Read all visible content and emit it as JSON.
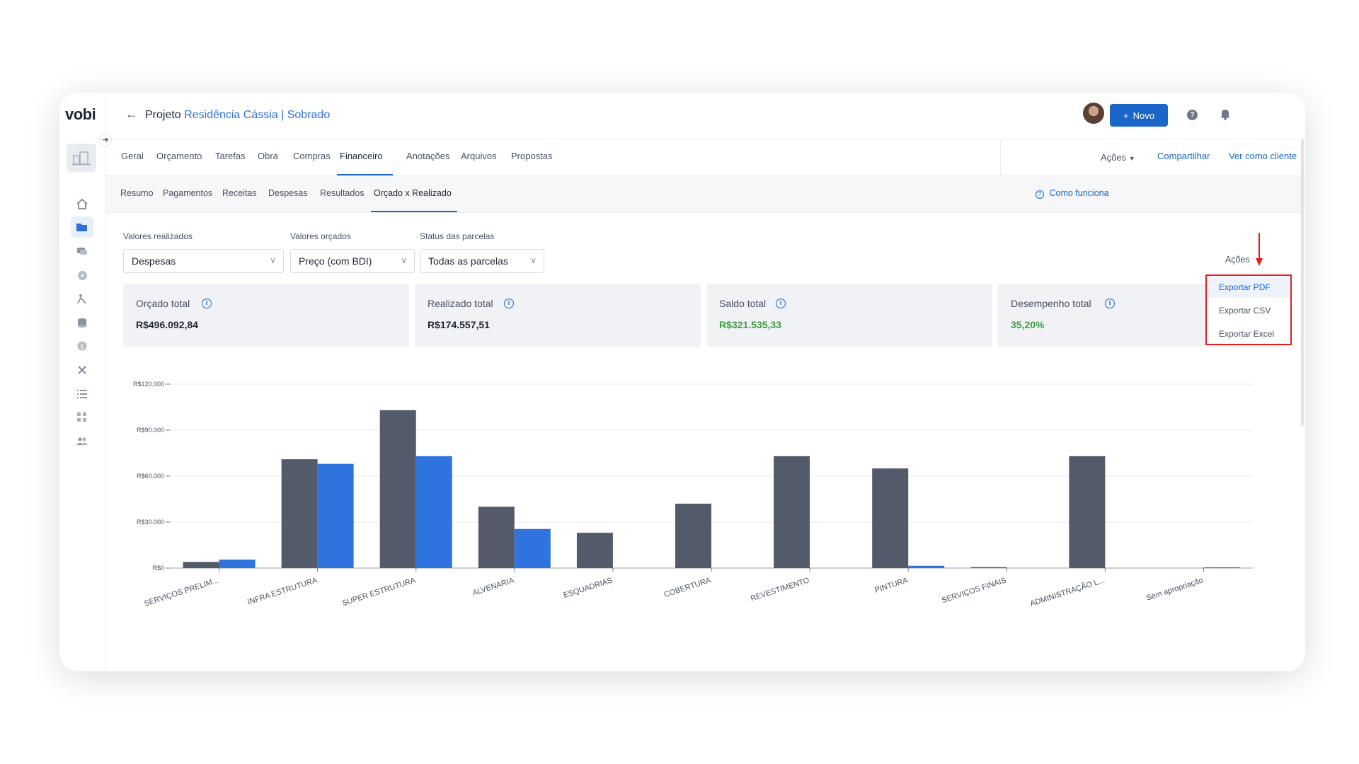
{
  "sidebar": {
    "logo": "vobi",
    "icons": [
      "collapse-arrow-icon",
      "home-icon",
      "folder-icon",
      "chat-icon",
      "compass-icon",
      "worker-icon",
      "coins-icon",
      "dollar-icon",
      "tools-icon",
      "list-icon",
      "apps-icon",
      "users-icon"
    ]
  },
  "header": {
    "back_icon": "arrow-left-icon",
    "title_prefix": "Projeto",
    "project_name": "Residência Cássia",
    "separator": "|",
    "project_sub": "Sobrado",
    "new_button": "Novo",
    "accent": "#1a66c9"
  },
  "tabs": {
    "items": [
      "Geral",
      "Orçamento",
      "Tarefas",
      "Obra",
      "Compras",
      "Financeiro",
      "Anotações",
      "Arquivos",
      "Propostas"
    ],
    "active": "Financeiro",
    "acoes": "Ações",
    "compartilhar": "Compartilhar",
    "ver_como_cliente": "Ver como cliente"
  },
  "subtabs": {
    "items": [
      "Resumo",
      "Pagamentos",
      "Receitas",
      "Despesas",
      "Resultados",
      "Orçado x Realizado"
    ],
    "active": "Orçado x Realizado",
    "help": "Como funciona"
  },
  "filters": {
    "realizados_label": "Valores realizados",
    "realizados_value": "Despesas",
    "orcados_label": "Valores orçados",
    "orcados_value": "Preço (com BDI)",
    "status_label": "Status das parcelas",
    "status_value": "Todas as parcelas",
    "acoes_label": "Ações"
  },
  "cards": [
    {
      "title": "Orçado total",
      "value": "R$496.092,84"
    },
    {
      "title": "Realizado total",
      "value": "R$174.557,51"
    },
    {
      "title": "Saldo total",
      "value": "R$321.535,33"
    },
    {
      "title": "Desempenho total",
      "value": "35,20%"
    }
  ],
  "dropdown": {
    "items": [
      "Exportar PDF",
      "Exportar CSV",
      "Exportar Excel"
    ],
    "highlight_border": "#e02020"
  },
  "chart_data": {
    "type": "bar",
    "categories": [
      "SERVIÇOS PRELIM...",
      "INFRA ESTRUTURA",
      "SUPER ESTRUTURA",
      "ALVENARIA",
      "ESQUADRIAS",
      "COBERTURA",
      "REVESTIMENTO",
      "PINTURA",
      "SERVIÇOS FINAIS",
      "ADMINISTRAÇÃO L...",
      "Sem apropriação"
    ],
    "series": [
      {
        "values": [
          4000,
          71000,
          103000,
          40000,
          23000,
          42000,
          73000,
          65000,
          600,
          73000,
          0
        ],
        "color": "#535b6b"
      },
      {
        "values": [
          5500,
          68000,
          73000,
          25500,
          0,
          0,
          0,
          1500,
          0,
          0,
          500
        ],
        "color": "#2f73df"
      }
    ],
    "y_ticks": [
      "R$0",
      "R$30.000",
      "R$60.000",
      "R$90.000",
      "R$120.000"
    ],
    "ylim": [
      0,
      120000
    ],
    "grid": true
  }
}
